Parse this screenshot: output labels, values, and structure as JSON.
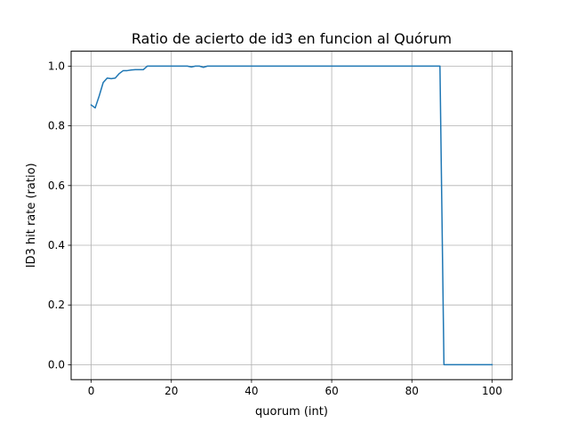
{
  "chart_data": {
    "type": "line",
    "title": "Ratio de acierto de id3 en funcion al Quórum",
    "xlabel": "quorum (int)",
    "ylabel": "ID3 hit rate (ratio)",
    "xlim": [
      -5,
      105
    ],
    "ylim": [
      -0.05,
      1.05
    ],
    "xticks": [
      0,
      20,
      40,
      60,
      80,
      100
    ],
    "xtick_labels": [
      "0",
      "20",
      "40",
      "60",
      "80",
      "100"
    ],
    "yticks": [
      0.0,
      0.2,
      0.4,
      0.6,
      0.8,
      1.0
    ],
    "ytick_labels": [
      "0.0",
      "0.2",
      "0.4",
      "0.6",
      "0.8",
      "1.0"
    ],
    "grid": true,
    "line_color": "#1f77b4",
    "grid_color": "#b0b0b0",
    "series": [
      {
        "x": [
          0,
          1,
          2,
          3,
          4,
          5,
          6,
          7,
          8,
          9,
          10,
          11,
          12,
          13,
          14,
          15,
          16,
          17,
          18,
          19,
          20,
          21,
          22,
          23,
          24,
          25,
          26,
          27,
          28,
          29,
          30,
          40,
          50,
          60,
          70,
          80,
          87,
          88,
          89,
          90,
          95,
          100
        ],
        "y": [
          0.87,
          0.86,
          0.9,
          0.945,
          0.96,
          0.958,
          0.96,
          0.975,
          0.985,
          0.985,
          0.987,
          0.988,
          0.988,
          0.988,
          1.0,
          1.0,
          1.0,
          1.0,
          1.0,
          1.0,
          1.0,
          1.0,
          1.0,
          1.0,
          1.0,
          0.997,
          1.0,
          1.0,
          0.996,
          1.0,
          1.0,
          1.0,
          1.0,
          1.0,
          1.0,
          1.0,
          1.0,
          0.0,
          0.0,
          0.0,
          0.0,
          0.0
        ]
      }
    ]
  }
}
